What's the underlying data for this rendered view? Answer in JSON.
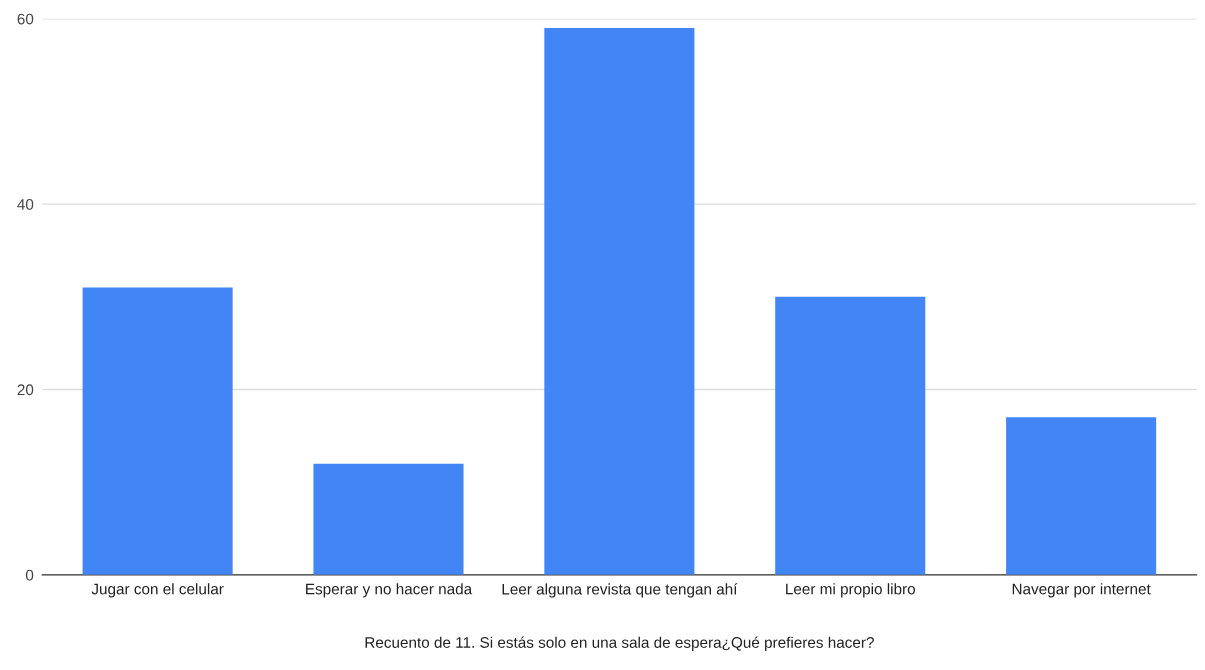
{
  "chart_data": {
    "type": "bar",
    "xlabel": "Recuento de 11. Si estás solo en una sala de espera¿Qué prefieres hacer?",
    "categories": [
      "Jugar con el celular",
      "Esperar y no hacer nada",
      "Leer alguna revista que tengan ahí",
      "Leer mi propio libro",
      "Navegar por internet"
    ],
    "values": [
      31,
      12,
      59,
      30,
      17
    ],
    "color": "#4285f4",
    "ylim": [
      0,
      60
    ],
    "yticks": [
      0,
      20,
      40,
      60
    ],
    "grid": "y",
    "legend": false
  }
}
